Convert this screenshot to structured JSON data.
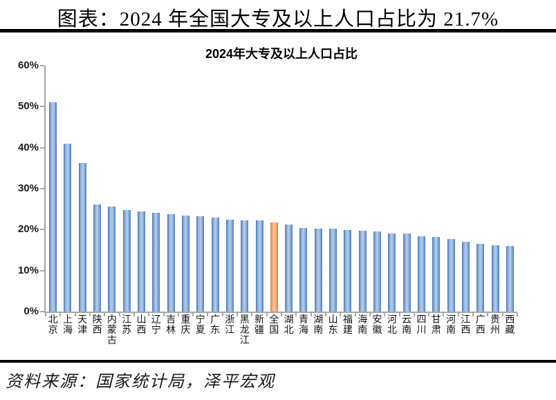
{
  "header": {
    "title": "图表：2024 年全国大专及以上人口占比为 21.7%"
  },
  "source": {
    "text": "资料来源：国家统计局，泽平宏观"
  },
  "colors": {
    "bar_dark": "#4676b5",
    "bar_mid": "#7ba3d4",
    "bar_light": "#b9d0ea",
    "highlight_dark": "#e8793a",
    "highlight_mid": "#f39e63",
    "highlight_light": "#fbc99f",
    "axis": "#a6a6a6",
    "rule": "#000000"
  },
  "chart_data": {
    "type": "bar",
    "title": "2024年大专及以上人口占比",
    "categories": [
      "北京",
      "上海",
      "天津",
      "陕西",
      "内蒙古",
      "江苏",
      "山西",
      "辽宁",
      "吉林",
      "重庆",
      "宁夏",
      "广东",
      "浙江",
      "黑龙江",
      "新疆",
      "全国",
      "湖北",
      "青海",
      "湖南",
      "山东",
      "福建",
      "海南",
      "安徽",
      "河北",
      "云南",
      "四川",
      "甘肃",
      "河南",
      "江西",
      "广西",
      "贵州",
      "西藏"
    ],
    "values": [
      51.0,
      41.0,
      36.2,
      26.2,
      25.7,
      24.7,
      24.5,
      24.1,
      23.7,
      23.4,
      23.3,
      22.9,
      22.4,
      22.3,
      22.2,
      21.7,
      21.2,
      20.4,
      20.3,
      20.2,
      19.9,
      19.8,
      19.5,
      19.1,
      19.0,
      18.4,
      18.2,
      17.7,
      17.0,
      16.6,
      16.2,
      16.0
    ],
    "highlight_category": "全国",
    "highlight_index": 15,
    "highlight_value": "21.7%",
    "ylabel": "",
    "xlabel": "",
    "ylim": [
      0,
      60
    ],
    "yticks": [
      "0%",
      "10%",
      "20%",
      "30%",
      "40%",
      "50%",
      "60%"
    ],
    "grid": false,
    "legend": false
  }
}
